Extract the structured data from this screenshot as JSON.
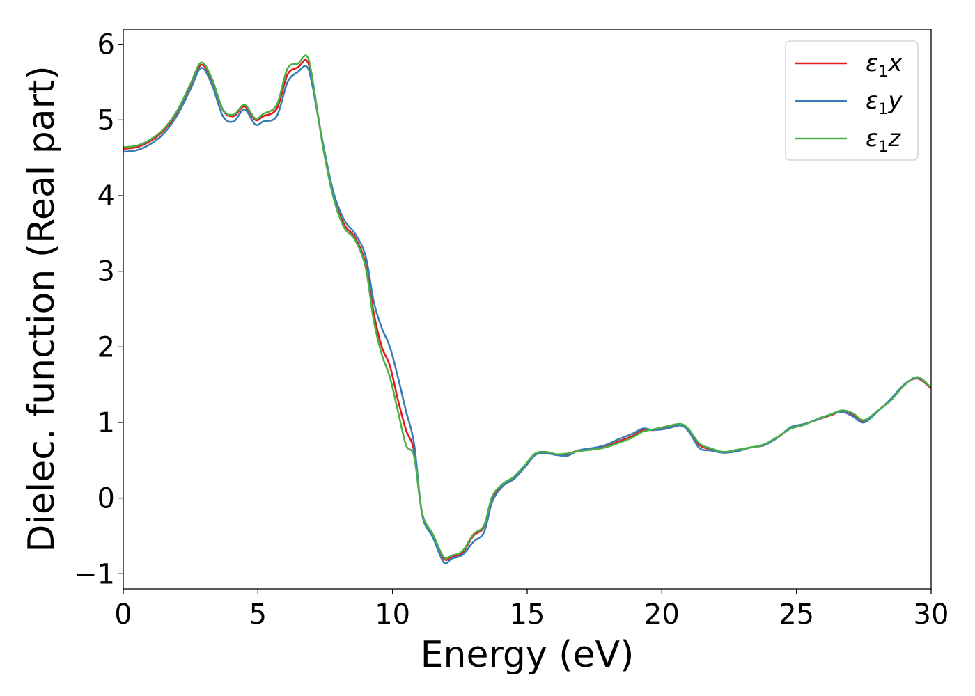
{
  "chart_data": {
    "type": "line",
    "title": "",
    "xlabel": "Energy (eV)",
    "ylabel": "Dielec. function (Real part)",
    "xlim": [
      0,
      30
    ],
    "ylim": [
      -1.2,
      6.2
    ],
    "xticks": [
      0,
      5,
      10,
      15,
      20,
      25,
      30
    ],
    "xtick_labels": [
      "0",
      "5",
      "10",
      "15",
      "20",
      "25",
      "30"
    ],
    "yticks": [
      -1,
      0,
      1,
      2,
      3,
      4,
      5,
      6
    ],
    "ytick_labels": [
      "−1",
      "0",
      "1",
      "2",
      "3",
      "4",
      "5",
      "6"
    ],
    "grid": false,
    "legend_position": "top-right",
    "series": [
      {
        "name": "ε₁x",
        "legend_main": "ε",
        "legend_sub": "1",
        "legend_tail": "x",
        "color": "#e41a1c",
        "x": [
          0,
          0.5,
          1,
          1.5,
          2,
          2.5,
          2.9,
          3.3,
          3.7,
          4.1,
          4.5,
          4.9,
          5.2,
          5.7,
          6.1,
          6.5,
          6.8,
          7.0,
          7.4,
          7.8,
          8.2,
          8.6,
          9.0,
          9.3,
          9.6,
          9.9,
          10.2,
          10.5,
          10.8,
          11.1,
          11.5,
          11.9,
          12.2,
          12.6,
          13.0,
          13.4,
          13.7,
          14.1,
          14.5,
          14.9,
          15.3,
          15.7,
          16.1,
          16.5,
          16.9,
          17.4,
          17.9,
          18.4,
          18.9,
          19.3,
          19.7,
          20.2,
          20.7,
          21.0,
          21.4,
          21.8,
          22.3,
          22.8,
          23.3,
          23.8,
          24.3,
          24.8,
          25.3,
          25.8,
          26.3,
          26.7,
          27.1,
          27.5,
          28.0,
          28.5,
          29.0,
          29.5,
          30.0
        ],
        "y": [
          4.62,
          4.64,
          4.72,
          4.86,
          5.1,
          5.45,
          5.73,
          5.52,
          5.13,
          5.05,
          5.18,
          5.0,
          5.05,
          5.15,
          5.6,
          5.7,
          5.79,
          5.55,
          4.7,
          4.0,
          3.62,
          3.45,
          3.1,
          2.45,
          2.0,
          1.75,
          1.3,
          0.9,
          0.62,
          -0.2,
          -0.5,
          -0.8,
          -0.78,
          -0.72,
          -0.5,
          -0.38,
          0.0,
          0.18,
          0.27,
          0.42,
          0.58,
          0.6,
          0.57,
          0.58,
          0.63,
          0.65,
          0.68,
          0.75,
          0.82,
          0.9,
          0.9,
          0.93,
          0.97,
          0.9,
          0.7,
          0.65,
          0.6,
          0.63,
          0.67,
          0.7,
          0.8,
          0.93,
          0.98,
          1.04,
          1.1,
          1.15,
          1.1,
          1.02,
          1.15,
          1.3,
          1.5,
          1.58,
          1.45
        ]
      },
      {
        "name": "ε₁y",
        "legend_main": "ε",
        "legend_sub": "1",
        "legend_tail": "y",
        "color": "#377eb8",
        "x": [
          0,
          0.5,
          1,
          1.5,
          2,
          2.5,
          2.9,
          3.3,
          3.7,
          4.1,
          4.5,
          4.9,
          5.2,
          5.7,
          6.1,
          6.5,
          6.8,
          7.0,
          7.4,
          7.8,
          8.2,
          8.6,
          9.0,
          9.3,
          9.6,
          9.9,
          10.2,
          10.5,
          10.8,
          11.1,
          11.5,
          11.9,
          12.2,
          12.6,
          13.0,
          13.4,
          13.7,
          14.1,
          14.5,
          14.9,
          15.3,
          15.7,
          16.1,
          16.5,
          16.9,
          17.4,
          17.9,
          18.4,
          18.9,
          19.3,
          19.7,
          20.2,
          20.7,
          21.0,
          21.4,
          21.8,
          22.3,
          22.8,
          23.3,
          23.8,
          24.3,
          24.8,
          25.3,
          25.8,
          26.3,
          26.7,
          27.1,
          27.5,
          28.0,
          28.5,
          29.0,
          29.5,
          30.0
        ],
        "y": [
          4.58,
          4.6,
          4.68,
          4.82,
          5.06,
          5.41,
          5.69,
          5.46,
          5.05,
          4.98,
          5.14,
          4.94,
          4.98,
          5.05,
          5.5,
          5.64,
          5.71,
          5.5,
          4.72,
          4.05,
          3.68,
          3.5,
          3.2,
          2.6,
          2.25,
          2.0,
          1.6,
          1.15,
          0.72,
          -0.22,
          -0.52,
          -0.85,
          -0.8,
          -0.75,
          -0.58,
          -0.45,
          -0.05,
          0.16,
          0.25,
          0.4,
          0.57,
          0.59,
          0.57,
          0.56,
          0.63,
          0.66,
          0.7,
          0.78,
          0.85,
          0.92,
          0.9,
          0.92,
          0.96,
          0.88,
          0.66,
          0.63,
          0.6,
          0.62,
          0.67,
          0.7,
          0.8,
          0.94,
          0.98,
          1.04,
          1.11,
          1.14,
          1.08,
          1.0,
          1.14,
          1.31,
          1.5,
          1.59,
          1.46
        ]
      },
      {
        "name": "ε₁z",
        "legend_main": "ε",
        "legend_sub": "1",
        "legend_tail": "z",
        "color": "#4daf4a",
        "x": [
          0,
          0.5,
          1,
          1.5,
          2,
          2.5,
          2.9,
          3.3,
          3.7,
          4.1,
          4.5,
          4.9,
          5.2,
          5.7,
          6.1,
          6.5,
          6.8,
          7.0,
          7.4,
          7.8,
          8.2,
          8.6,
          9.0,
          9.3,
          9.6,
          9.9,
          10.2,
          10.5,
          10.8,
          11.1,
          11.5,
          11.9,
          12.2,
          12.6,
          13.0,
          13.4,
          13.7,
          14.1,
          14.5,
          14.9,
          15.3,
          15.7,
          16.1,
          16.5,
          16.9,
          17.4,
          17.9,
          18.4,
          18.9,
          19.3,
          19.7,
          20.2,
          20.7,
          21.0,
          21.4,
          21.8,
          22.3,
          22.8,
          23.3,
          23.8,
          24.3,
          24.8,
          25.3,
          25.8,
          26.3,
          26.7,
          27.1,
          27.5,
          28.0,
          28.5,
          29.0,
          29.5,
          30.0
        ],
        "y": [
          4.64,
          4.66,
          4.74,
          4.88,
          5.12,
          5.48,
          5.76,
          5.54,
          5.14,
          5.07,
          5.2,
          5.02,
          5.08,
          5.2,
          5.68,
          5.75,
          5.85,
          5.6,
          4.68,
          3.98,
          3.58,
          3.42,
          3.05,
          2.35,
          1.9,
          1.6,
          1.15,
          0.7,
          0.55,
          -0.2,
          -0.48,
          -0.78,
          -0.76,
          -0.7,
          -0.48,
          -0.36,
          0.02,
          0.19,
          0.28,
          0.43,
          0.59,
          0.61,
          0.58,
          0.59,
          0.62,
          0.64,
          0.67,
          0.73,
          0.8,
          0.88,
          0.91,
          0.95,
          0.98,
          0.91,
          0.72,
          0.66,
          0.61,
          0.64,
          0.67,
          0.71,
          0.81,
          0.92,
          0.97,
          1.05,
          1.11,
          1.16,
          1.12,
          1.03,
          1.15,
          1.29,
          1.49,
          1.6,
          1.46
        ]
      }
    ]
  }
}
